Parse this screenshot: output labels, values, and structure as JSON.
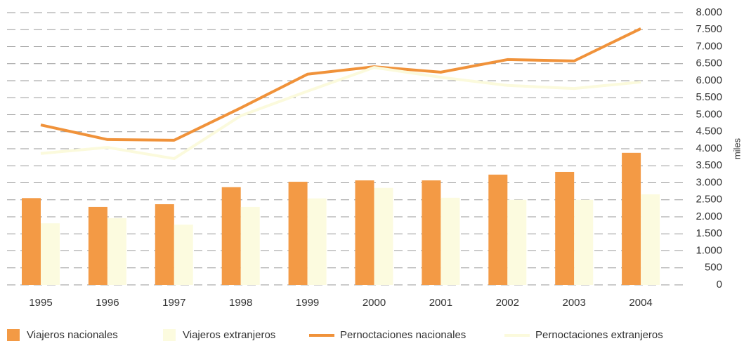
{
  "chart_data": {
    "type": "bar",
    "categories": [
      "1995",
      "1996",
      "1997",
      "1998",
      "1999",
      "2000",
      "2001",
      "2002",
      "2003",
      "2004"
    ],
    "y_label": "miles",
    "ylim": [
      0,
      8000
    ],
    "yticks": [
      0,
      500,
      {
        "value": 1000,
        "label": "1.000"
      },
      {
        "value": 1500,
        "label": "1.500"
      },
      {
        "value": 2000,
        "label": "2.000"
      },
      {
        "value": 2500,
        "label": "2.500"
      },
      {
        "value": 3000,
        "label": "3.000"
      },
      {
        "value": 3500,
        "label": "3.500"
      },
      {
        "value": 4000,
        "label": "4.000"
      },
      {
        "value": 4500,
        "label": "4.500"
      },
      {
        "value": 5000,
        "label": "5.000"
      },
      {
        "value": 5500,
        "label": "5.500"
      },
      {
        "value": 6000,
        "label": "6.000"
      },
      {
        "value": 6500,
        "label": "6.500"
      },
      {
        "value": 7000,
        "label": "7.000"
      },
      {
        "value": 7500,
        "label": "7.500"
      },
      {
        "value": 8000,
        "label": "8.000"
      }
    ],
    "grid": true,
    "series": [
      {
        "name": "Viajeros nacionales",
        "type": "bar",
        "color": "#f39a45",
        "values": [
          2550,
          2290,
          2370,
          2870,
          3030,
          3070,
          3070,
          3240,
          3320,
          3880
        ]
      },
      {
        "name": "Viajeros extranjeros",
        "type": "bar",
        "color": "#fcfbdf",
        "values": [
          1810,
          1960,
          1770,
          2290,
          2540,
          2850,
          2560,
          2500,
          2500,
          2660
        ]
      },
      {
        "name": "Pernoctaciones nacionales",
        "type": "line",
        "color": "#f0923a",
        "values": [
          4700,
          4270,
          4250,
          5200,
          6190,
          6410,
          6250,
          6620,
          6580,
          7530
        ]
      },
      {
        "name": "Pernoctaciones extranjeros",
        "type": "line",
        "color": "#fbfadc",
        "values": [
          3860,
          4040,
          3710,
          4970,
          5690,
          6390,
          6100,
          5860,
          5770,
          5960
        ]
      }
    ]
  }
}
